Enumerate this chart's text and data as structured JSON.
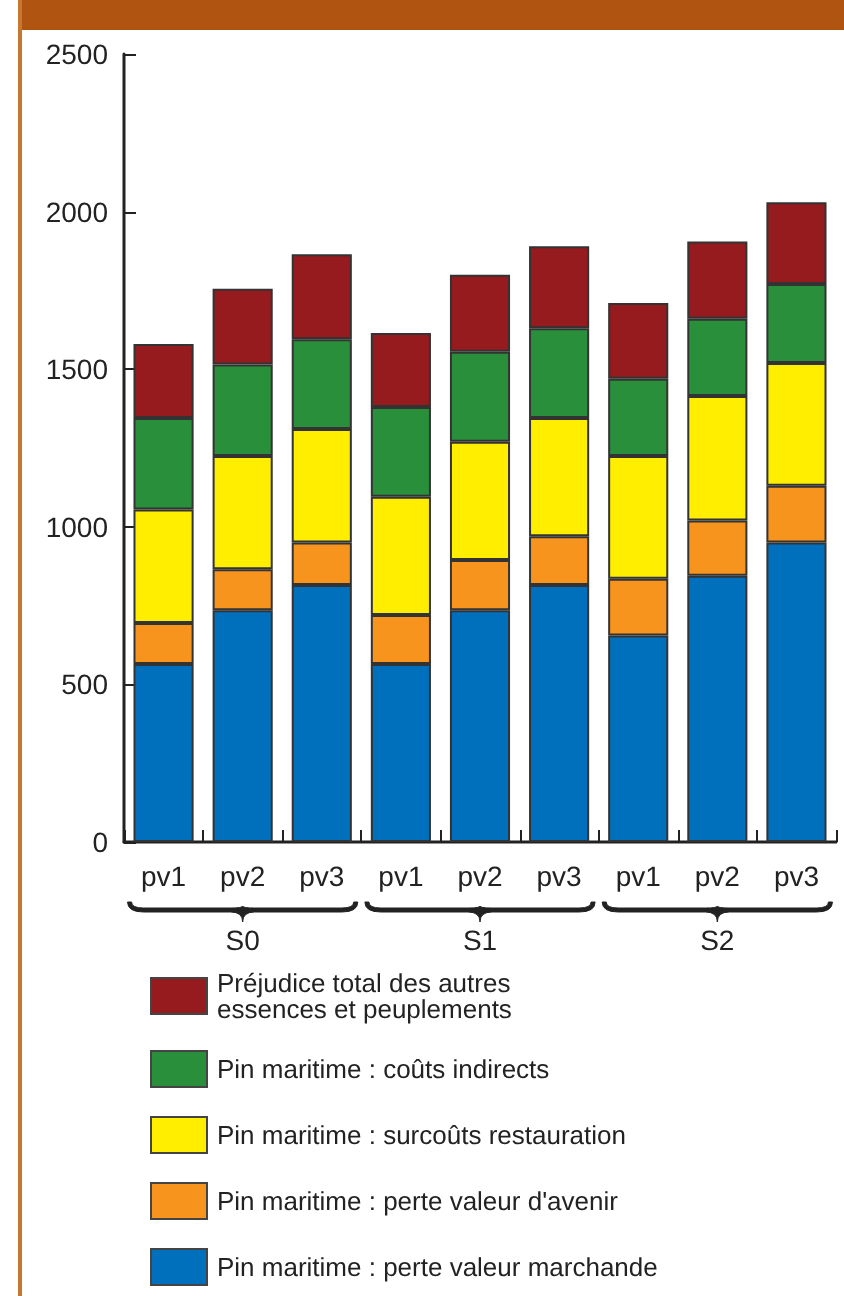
{
  "chart_data": {
    "type": "bar",
    "stacked": true,
    "categories": [
      "pv1",
      "pv2",
      "pv3",
      "pv1",
      "pv2",
      "pv3",
      "pv1",
      "pv2",
      "pv3"
    ],
    "annotations": [
      "S0",
      "S1",
      "S2"
    ],
    "series": [
      {
        "name": "Pin maritime : perte valeur marchande",
        "color": "#0070bc",
        "values": [
          565,
          735,
          815,
          565,
          735,
          815,
          655,
          845,
          950
        ]
      },
      {
        "name": "Pin maritime : perte valeur d'avenir",
        "color": "#f7941d",
        "values": [
          130,
          130,
          135,
          155,
          160,
          155,
          180,
          175,
          180
        ]
      },
      {
        "name": "Pin maritime : surcoûts restauration",
        "color": "#ffee00",
        "values": [
          360,
          360,
          360,
          375,
          375,
          375,
          390,
          395,
          390
        ]
      },
      {
        "name": "Pin maritime : coûts indirects",
        "color": "#2a8f3b",
        "values": [
          290,
          290,
          285,
          285,
          285,
          285,
          245,
          245,
          250
        ]
      },
      {
        "name": "Préjudice total des autres essences et peuplements",
        "color": "#951b1e",
        "values": [
          235,
          240,
          270,
          235,
          245,
          260,
          240,
          245,
          260
        ]
      }
    ],
    "ylim": [
      0,
      2500
    ],
    "yticks": [
      0,
      500,
      1000,
      1500,
      2000,
      2500
    ],
    "grid": false,
    "legend": "bottom"
  }
}
